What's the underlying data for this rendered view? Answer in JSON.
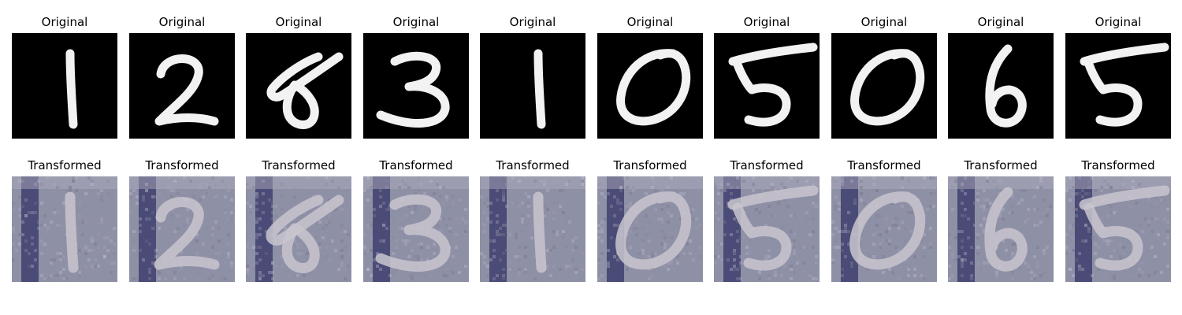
{
  "figure": {
    "rows": [
      {
        "row_id": "original",
        "panels": [
          {
            "title": "Original",
            "digit": "1"
          },
          {
            "title": "Original",
            "digit": "2"
          },
          {
            "title": "Original",
            "digit": "8"
          },
          {
            "title": "Original",
            "digit": "3"
          },
          {
            "title": "Original",
            "digit": "1"
          },
          {
            "title": "Original",
            "digit": "0"
          },
          {
            "title": "Original",
            "digit": "5"
          },
          {
            "title": "Original",
            "digit": "0"
          },
          {
            "title": "Original",
            "digit": "6"
          },
          {
            "title": "Original",
            "digit": "5"
          }
        ],
        "colors": {
          "background": "#000000",
          "stroke": "#f2f2f2"
        }
      },
      {
        "row_id": "transformed",
        "panels": [
          {
            "title": "Transformed",
            "digit": "1"
          },
          {
            "title": "Transformed",
            "digit": "2"
          },
          {
            "title": "Transformed",
            "digit": "8"
          },
          {
            "title": "Transformed",
            "digit": "3"
          },
          {
            "title": "Transformed",
            "digit": "1"
          },
          {
            "title": "Transformed",
            "digit": "0"
          },
          {
            "title": "Transformed",
            "digit": "5"
          },
          {
            "title": "Transformed",
            "digit": "0"
          },
          {
            "title": "Transformed",
            "digit": "6"
          },
          {
            "title": "Transformed",
            "digit": "5"
          }
        ],
        "colors": {
          "background": "#8e90a6",
          "dark_band": "#3f3f6e",
          "stroke": "#c9c6cf"
        }
      }
    ]
  }
}
